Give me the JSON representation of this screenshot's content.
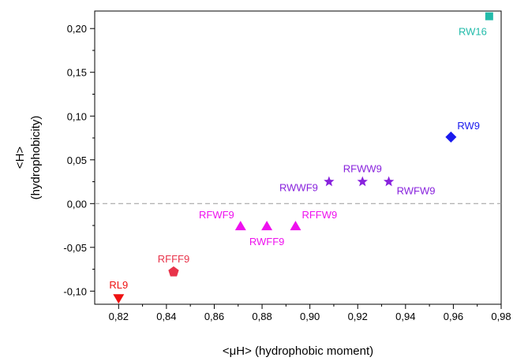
{
  "chart_data": {
    "type": "scatter",
    "title": "",
    "xlabel": "<μH> (hydrophobic moment)",
    "ylabel": "<H>",
    "ylabel2": "(hydrophobicity)",
    "xlim": [
      0.81,
      0.98
    ],
    "ylim": [
      -0.115,
      0.22
    ],
    "x_ticks": [
      0.82,
      0.84,
      0.86,
      0.88,
      0.9,
      0.92,
      0.94,
      0.96,
      0.98
    ],
    "x_tick_labels": [
      "0,82",
      "0,84",
      "0,86",
      "0,88",
      "0,90",
      "0,92",
      "0,94",
      "0,96",
      "0,98"
    ],
    "y_ticks": [
      -0.1,
      -0.05,
      0.0,
      0.05,
      0.1,
      0.15,
      0.2
    ],
    "y_tick_labels": [
      "-0,10",
      "-0,05",
      "0,00",
      "0,05",
      "0,10",
      "0,15",
      "0,20"
    ],
    "reference_line_y": 0,
    "grid": false,
    "legend": "none",
    "points": [
      {
        "label": "RL9",
        "x": 0.82,
        "y": -0.108,
        "marker": "triangle-down",
        "color": "#ee1111",
        "label_pos": "above"
      },
      {
        "label": "RFFF9",
        "x": 0.843,
        "y": -0.078,
        "marker": "pentagon",
        "color": "#e8334a",
        "label_pos": "above"
      },
      {
        "label": "RFWF9",
        "x": 0.871,
        "y": -0.026,
        "marker": "triangle-up",
        "color": "#ee11ee",
        "label_pos": "upper-left"
      },
      {
        "label": "RWFF9",
        "x": 0.882,
        "y": -0.026,
        "marker": "triangle-up",
        "color": "#ee11ee",
        "label_pos": "below"
      },
      {
        "label": "RFFW9",
        "x": 0.894,
        "y": -0.026,
        "marker": "triangle-up",
        "color": "#ee11ee",
        "label_pos": "upper-right"
      },
      {
        "label": "RWWF9",
        "x": 0.908,
        "y": 0.025,
        "marker": "star",
        "color": "#8822dd",
        "label_pos": "left"
      },
      {
        "label": "RFWW9",
        "x": 0.922,
        "y": 0.025,
        "marker": "star",
        "color": "#8822dd",
        "label_pos": "above"
      },
      {
        "label": "RWFW9",
        "x": 0.933,
        "y": 0.025,
        "marker": "star",
        "color": "#8822dd",
        "label_pos": "lower-right"
      },
      {
        "label": "RW9",
        "x": 0.959,
        "y": 0.076,
        "marker": "diamond",
        "color": "#1a1aee",
        "label_pos": "upper-right"
      },
      {
        "label": "RW16",
        "x": 0.975,
        "y": 0.214,
        "marker": "square",
        "color": "#22bbaa",
        "label_pos": "below-left"
      }
    ]
  }
}
